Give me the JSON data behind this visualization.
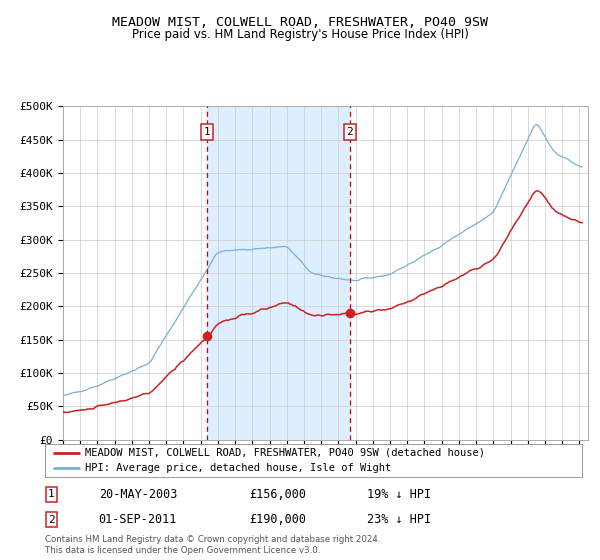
{
  "title": "MEADOW MIST, COLWELL ROAD, FRESHWATER, PO40 9SW",
  "subtitle": "Price paid vs. HM Land Registry's House Price Index (HPI)",
  "legend_line1": "MEADOW MIST, COLWELL ROAD, FRESHWATER, PO40 9SW (detached house)",
  "legend_line2": "HPI: Average price, detached house, Isle of Wight",
  "footnote": "Contains HM Land Registry data © Crown copyright and database right 2024.\nThis data is licensed under the Open Government Licence v3.0.",
  "sale1_date": "20-MAY-2003",
  "sale1_price": "£156,000",
  "sale1_hpi": "19% ↓ HPI",
  "sale2_date": "01-SEP-2011",
  "sale2_price": "£190,000",
  "sale2_hpi": "23% ↓ HPI",
  "vline1_year": 2003.38,
  "vline2_year": 2011.67,
  "dot1_year": 2003.38,
  "dot1_value": 156000,
  "dot2_year": 2011.67,
  "dot2_value": 190000,
  "shaded_start": 2003.38,
  "shaded_end": 2011.67,
  "hpi_color": "#7ab0d4",
  "property_color": "#cc2222",
  "shaded_color": "#ddeeff",
  "vline_color": "#cc0000",
  "background_color": "#ffffff",
  "grid_color": "#cccccc",
  "ylim": [
    0,
    500000
  ],
  "yticks": [
    0,
    50000,
    100000,
    150000,
    200000,
    250000,
    300000,
    350000,
    400000,
    450000,
    500000
  ],
  "ytick_labels": [
    "£0",
    "£50K",
    "£100K",
    "£150K",
    "£200K",
    "£250K",
    "£300K",
    "£350K",
    "£400K",
    "£450K",
    "£500K"
  ],
  "xlim_start": 1995.0,
  "xlim_end": 2025.5
}
